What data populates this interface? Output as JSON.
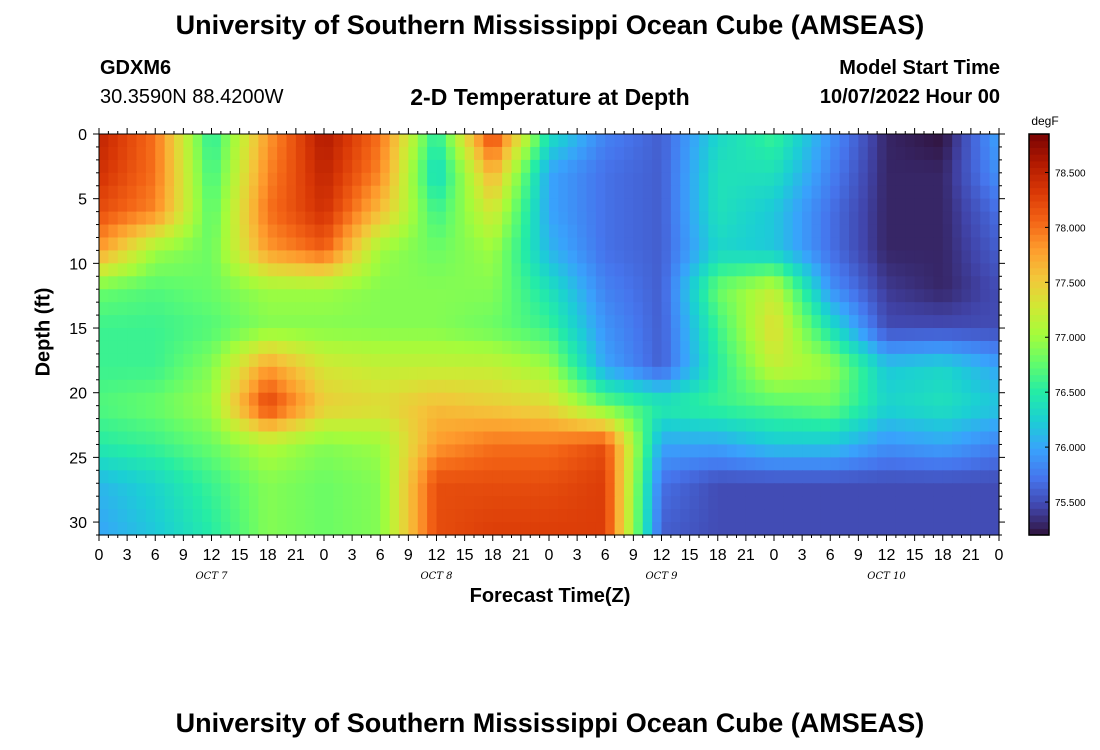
{
  "header": {
    "title": "University of Southern Mississippi Ocean Cube (AMSEAS)",
    "station_id": "GDXM6",
    "station_coords": "30.3590N  88.4200W",
    "plot_title": "2-D Temperature at Depth",
    "model_start_label": "Model Start Time",
    "model_start_value": "10/07/2022 Hour 00"
  },
  "footer": {
    "title": "University of Southern Mississippi Ocean Cube (AMSEAS)"
  },
  "chart_data": {
    "type": "heatmap",
    "title": "2-D Temperature at Depth",
    "xlabel": "Forecast Time(Z)",
    "ylabel": "Depth (ft)",
    "xlim_hours": [
      0,
      96
    ],
    "ylim": [
      31,
      0
    ],
    "x_tick_labels": [
      "0",
      "3",
      "6",
      "9",
      "12",
      "15",
      "18",
      "21",
      "0",
      "3",
      "6",
      "9",
      "12",
      "15",
      "18",
      "21",
      "0",
      "3",
      "6",
      "9",
      "12",
      "15",
      "18",
      "21",
      "0",
      "3",
      "6",
      "9",
      "12",
      "15",
      "18",
      "21",
      "0"
    ],
    "y_ticks": [
      0,
      5,
      10,
      15,
      20,
      25,
      30
    ],
    "day_labels": [
      {
        "text": "OCT 7",
        "hour": 12
      },
      {
        "text": "OCT 8",
        "hour": 36
      },
      {
        "text": "OCT 9",
        "hour": 60
      },
      {
        "text": "OCT 10",
        "hour": 84
      }
    ],
    "colorbar": {
      "unit": "degF",
      "min": 75.2,
      "max": 78.85,
      "ticks": [
        75.5,
        76.0,
        76.5,
        77.0,
        77.5,
        78.0,
        78.5
      ],
      "tick_labels": [
        "75.500",
        "76.000",
        "76.500",
        "77.000",
        "77.500",
        "78.000",
        "78.500"
      ]
    },
    "colormap": [
      "#30123b",
      "#4145ab",
      "#4675ed",
      "#39a2fc",
      "#1bcfd4",
      "#24eca6",
      "#61fc6c",
      "#a4fc3b",
      "#d1e834",
      "#f3c63a",
      "#fe9b2d",
      "#f36315",
      "#d93806",
      "#b11901",
      "#7a0403"
    ],
    "depth_levels_ft": [
      0,
      3,
      6,
      9,
      12,
      15,
      18,
      21,
      24,
      27,
      31
    ],
    "time_hours": [
      0,
      6,
      12,
      18,
      24,
      30,
      36,
      42,
      48,
      54,
      60,
      66,
      72,
      78,
      84,
      90,
      96
    ],
    "temperature_degF": [
      [
        78.5,
        78.0,
        76.5,
        77.8,
        78.6,
        78.0,
        76.5,
        78.3,
        76.4,
        75.8,
        75.6,
        76.3,
        76.6,
        75.9,
        75.3,
        75.2,
        76.0
      ],
      [
        78.4,
        78.0,
        76.6,
        77.9,
        78.5,
        77.9,
        76.3,
        77.7,
        76.0,
        75.7,
        75.6,
        76.4,
        76.4,
        75.8,
        75.3,
        75.3,
        75.9
      ],
      [
        78.2,
        77.9,
        76.7,
        78.0,
        78.4,
        77.6,
        76.6,
        77.3,
        76.0,
        75.7,
        75.6,
        76.4,
        76.2,
        75.7,
        75.3,
        75.3,
        75.7
      ],
      [
        77.8,
        77.0,
        76.8,
        77.8,
        78.1,
        77.0,
        76.8,
        77.0,
        76.1,
        75.7,
        75.6,
        76.3,
        76.2,
        75.7,
        75.3,
        75.3,
        75.6
      ],
      [
        76.8,
        76.7,
        76.8,
        77.0,
        77.0,
        76.9,
        76.9,
        76.9,
        76.4,
        75.8,
        75.6,
        76.8,
        77.2,
        75.9,
        75.4,
        75.3,
        75.5
      ],
      [
        76.6,
        76.6,
        76.7,
        76.9,
        76.9,
        76.9,
        76.9,
        76.8,
        76.6,
        75.9,
        75.6,
        76.6,
        77.4,
        76.4,
        75.5,
        75.5,
        75.5
      ],
      [
        76.6,
        76.6,
        76.9,
        77.8,
        77.3,
        77.2,
        77.2,
        77.2,
        77.0,
        76.0,
        75.6,
        76.5,
        77.2,
        77.0,
        76.2,
        76.3,
        76.0
      ],
      [
        76.7,
        76.8,
        77.0,
        78.3,
        77.5,
        77.4,
        77.6,
        77.5,
        77.4,
        76.8,
        76.5,
        76.6,
        76.7,
        76.8,
        76.3,
        76.4,
        76.2
      ],
      [
        76.5,
        76.6,
        76.8,
        77.1,
        76.9,
        77.0,
        77.8,
        78.0,
        78.0,
        78.2,
        76.0,
        76.0,
        76.2,
        76.2,
        75.9,
        76.0,
        75.8
      ],
      [
        76.1,
        76.3,
        76.6,
        76.9,
        76.8,
        76.9,
        78.2,
        78.2,
        78.2,
        78.3,
        75.7,
        75.5,
        75.5,
        75.5,
        75.5,
        75.5,
        75.5
      ],
      [
        76.0,
        76.2,
        76.5,
        76.9,
        76.8,
        76.9,
        78.2,
        78.3,
        78.3,
        78.3,
        75.6,
        75.5,
        75.5,
        75.5,
        75.5,
        75.5,
        75.5
      ]
    ]
  }
}
